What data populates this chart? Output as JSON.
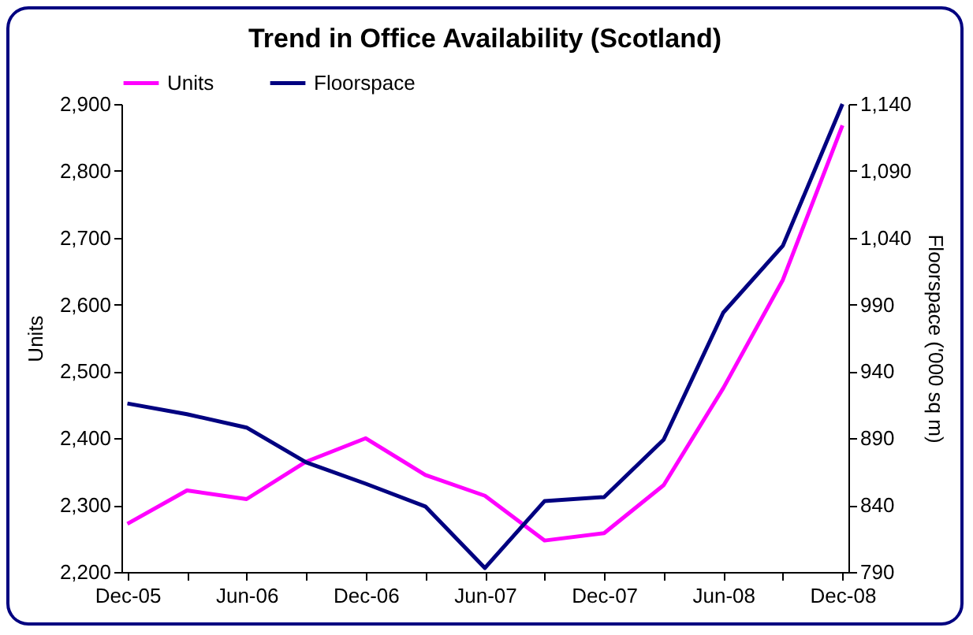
{
  "chart_data": {
    "type": "line",
    "title": "Trend in Office Availability (Scotland)",
    "categories": [
      "Dec-05",
      null,
      "Jun-06",
      null,
      "Dec-06",
      null,
      "Jun-07",
      null,
      "Dec-07",
      null,
      "Jun-08",
      null,
      "Dec-08"
    ],
    "series": [
      {
        "name": "Units",
        "color": "#ff00ff",
        "values": [
          2272,
          2322,
          2309,
          2365,
          2400,
          2345,
          2314,
          2247,
          2258,
          2330,
          2475,
          2637,
          2868
        ]
      },
      {
        "name": "Floorspace",
        "color": "#000080",
        "axis": "y2",
        "values": [
          916,
          908,
          898,
          872,
          856,
          839,
          793,
          843,
          846,
          889,
          984,
          1034,
          1140
        ]
      }
    ],
    "ylabel": "Units",
    "y2label": "Floorspace ('000 sq m)",
    "ylim": [
      2200,
      2900
    ],
    "yticks": [
      {
        "value": 2200,
        "label": "2,200"
      },
      {
        "value": 2300,
        "label": "2,300"
      },
      {
        "value": 2400,
        "label": "2,400"
      },
      {
        "value": 2500,
        "label": "2,500"
      },
      {
        "value": 2600,
        "label": "2,600"
      },
      {
        "value": 2700,
        "label": "2,700"
      },
      {
        "value": 2800,
        "label": "2,800"
      },
      {
        "value": 2900,
        "label": "2,900"
      }
    ],
    "y2lim": [
      790,
      1140
    ],
    "y2ticks": [
      790,
      840,
      890,
      940,
      990,
      {
        "value": 1040,
        "label": "1,040"
      },
      {
        "value": 1090,
        "label": "1,090"
      },
      {
        "value": 1140,
        "label": "1,140"
      }
    ],
    "legend": "top",
    "grid": false,
    "marker": "none",
    "line_style": "solid"
  }
}
